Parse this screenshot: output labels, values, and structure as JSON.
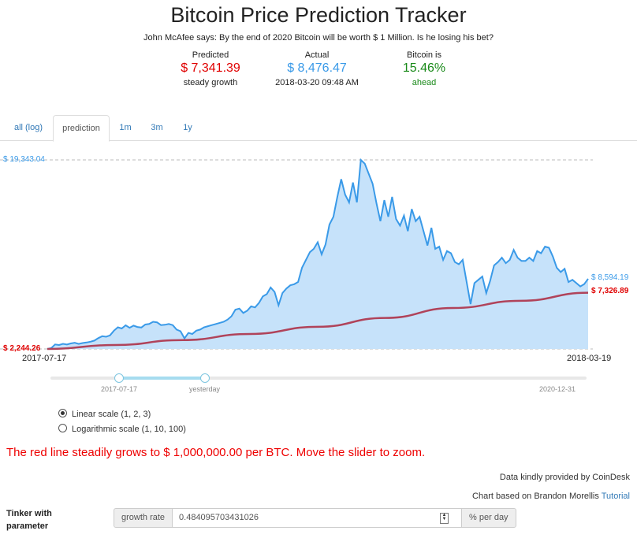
{
  "header": {
    "title": "Bitcoin Price Prediction Tracker",
    "subtitle": "John McAfee says: By the end of 2020 Bitcoin will be worth $ 1 Million. Is he losing his bet?"
  },
  "stats": {
    "predicted": {
      "label": "Predicted",
      "value": "$ 7,341.39",
      "sub": "steady growth",
      "color": "#e00000"
    },
    "actual": {
      "label": "Actual",
      "value": "$ 8,476.47",
      "sub": "2018-03-20 09:48 AM",
      "color": "#3a9ae8"
    },
    "bitcoin_is": {
      "label": "Bitcoin is",
      "value": "15.46%",
      "sub": "ahead",
      "color": "#1a8a1a"
    }
  },
  "tabs": [
    {
      "label": "all (log)",
      "active": false
    },
    {
      "label": "prediction",
      "active": true
    },
    {
      "label": "1m",
      "active": false
    },
    {
      "label": "3m",
      "active": false
    },
    {
      "label": "1y",
      "active": false
    }
  ],
  "slider": {
    "start_label": "2017-07-17",
    "handle_label": "yesterday",
    "end_label": "2020-12-31"
  },
  "scale_options": [
    {
      "label": "Linear scale (1, 2, 3)",
      "selected": true
    },
    {
      "label": "Logarithmic scale (1, 10, 100)",
      "selected": false
    }
  ],
  "message": "The red line steadily grows to $ 1,000,000.00 per BTC. Move the slider to zoom.",
  "credits": {
    "data": "Data kindly provided by CoinDesk",
    "chart_prefix": "Chart based on Brandon Morellis",
    "chart_link": "Tutorial"
  },
  "tinker": {
    "label_line1": "Tinker with",
    "label_line2": "parameter",
    "addon_left": "growth rate",
    "value": "0.484095703431026",
    "addon_right": "% per day"
  },
  "chart_data": {
    "type": "area",
    "x_start_label": "2017-07-17",
    "x_end_label": "2018-03-19",
    "ylim": [
      2244.26,
      19343.04
    ],
    "max_label": "$ 19,343.04",
    "min_label": "$ 2,244.26",
    "actual_end_label": "$ 8,594.19",
    "predicted_end_label": "$ 7,326.89",
    "colors": {
      "area": "#c6e2fa",
      "line": "#3a9ae8",
      "prediction": "#b0435a",
      "max_label": "#3a9ae8",
      "red_label": "#e00000"
    },
    "series": [
      {
        "kind": "actual",
        "values": [
          2244.26,
          2330,
          2650,
          2600,
          2710,
          2650,
          2740,
          2800,
          2700,
          2780,
          2830,
          2900,
          3000,
          3220,
          3400,
          3350,
          3470,
          3900,
          4200,
          4100,
          4380,
          4160,
          4350,
          4230,
          4180,
          4450,
          4500,
          4700,
          4650,
          4400,
          4430,
          4500,
          4400,
          4000,
          3850,
          3200,
          3700,
          3600,
          3900,
          4000,
          4200,
          4300,
          4400,
          4500,
          4600,
          4700,
          4900,
          5200,
          5800,
          5900,
          5500,
          5700,
          6100,
          6000,
          6400,
          7000,
          7200,
          7800,
          7400,
          6200,
          7300,
          7700,
          8000,
          8100,
          8300,
          9600,
          10300,
          11000,
          11300,
          11900,
          10800,
          11700,
          13500,
          14200,
          16000,
          17600,
          16200,
          15500,
          17300,
          15500,
          19343.04,
          19000,
          18100,
          17200,
          15400,
          13800,
          15700,
          14200,
          16000,
          14000,
          13400,
          14300,
          12900,
          14900,
          13800,
          14200,
          12900,
          11600,
          13200,
          11300,
          11500,
          10300,
          11100,
          10900,
          10100,
          9900,
          10300,
          8300,
          6300,
          8200,
          8500,
          8800,
          7300,
          8400,
          9800,
          10100,
          10500,
          10000,
          10300,
          11200,
          10500,
          10200,
          10200,
          10500,
          10200,
          11100,
          10900,
          11500,
          11400,
          10600,
          9600,
          9200,
          9500,
          8300,
          8500,
          8200,
          7900,
          8100,
          8594.19
        ]
      },
      {
        "kind": "predicted",
        "values": [
          2244.26,
          2600,
          3050,
          3600,
          4250,
          5050,
          5950,
          6600,
          7326.89
        ]
      }
    ]
  }
}
